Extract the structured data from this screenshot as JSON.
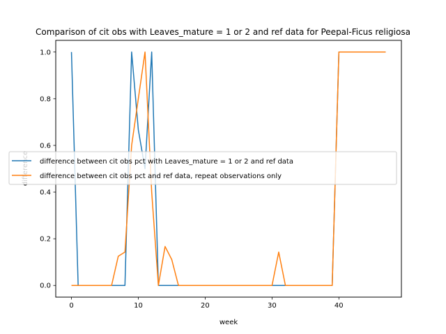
{
  "chart_data": {
    "type": "line",
    "title": "Comparison of cit obs with Leaves_mature = 1 or 2 and ref data for Peepal-Ficus religiosa",
    "xlabel": "week",
    "ylabel": "difference",
    "xlim": [
      -2.35,
      49.35
    ],
    "ylim": [
      -0.05,
      1.05
    ],
    "xticks": [
      0,
      10,
      20,
      30,
      40
    ],
    "yticks": [
      0.0,
      0.2,
      0.4,
      0.6,
      0.8,
      1.0
    ],
    "xtick_labels": [
      "0",
      "10",
      "20",
      "30",
      "40"
    ],
    "ytick_labels": [
      "0.0",
      "0.2",
      "0.4",
      "0.6",
      "0.8",
      "1.0"
    ],
    "grid": false,
    "legend_position": "center-left",
    "series": [
      {
        "name": "difference between cit obs pct with Leaves_mature = 1 or 2 and ref data",
        "color": "#1f77b4",
        "x": [
          0,
          1,
          2,
          3,
          4,
          5,
          6,
          7,
          8,
          9,
          10,
          11,
          12,
          13,
          14,
          15,
          16,
          17,
          18,
          19,
          20,
          21,
          22,
          23,
          24,
          25,
          26,
          27,
          28,
          29,
          30,
          31,
          32,
          33,
          34,
          35,
          36,
          37,
          38,
          39,
          40,
          41,
          42,
          43,
          44,
          45,
          46,
          47
        ],
        "y": [
          1.0,
          0,
          0,
          0,
          0,
          0,
          0,
          0,
          0,
          1.0,
          0.667,
          0.5,
          1.0,
          0,
          0,
          0,
          0,
          0,
          0,
          0,
          0,
          0,
          0,
          0,
          0,
          0,
          0,
          0,
          0,
          0,
          0,
          0,
          0,
          0,
          0,
          0,
          0,
          0,
          0,
          0,
          1.0,
          1.0,
          1.0,
          1.0,
          1.0,
          1.0,
          1.0,
          1.0
        ]
      },
      {
        "name": "difference between cit obs pct and ref data, repeat observations only",
        "color": "#ff7f0e",
        "x": [
          0,
          1,
          2,
          3,
          4,
          5,
          6,
          7,
          8,
          9,
          10,
          11,
          12,
          13,
          14,
          15,
          16,
          17,
          18,
          19,
          20,
          21,
          22,
          23,
          24,
          25,
          26,
          27,
          28,
          29,
          30,
          31,
          32,
          33,
          34,
          35,
          36,
          37,
          38,
          39,
          40,
          41,
          42,
          43,
          44,
          45,
          46,
          47
        ],
        "y": [
          0,
          0,
          0,
          0,
          0,
          0,
          0,
          0.125,
          0.143,
          0.6,
          0.8,
          1.0,
          0.4,
          0,
          0.167,
          0.111,
          0,
          0,
          0,
          0,
          0,
          0,
          0,
          0,
          0,
          0,
          0,
          0,
          0,
          0,
          0,
          0.143,
          0,
          0,
          0,
          0,
          0,
          0,
          0,
          0,
          1.0,
          1.0,
          1.0,
          1.0,
          1.0,
          1.0,
          1.0,
          1.0
        ]
      }
    ]
  }
}
